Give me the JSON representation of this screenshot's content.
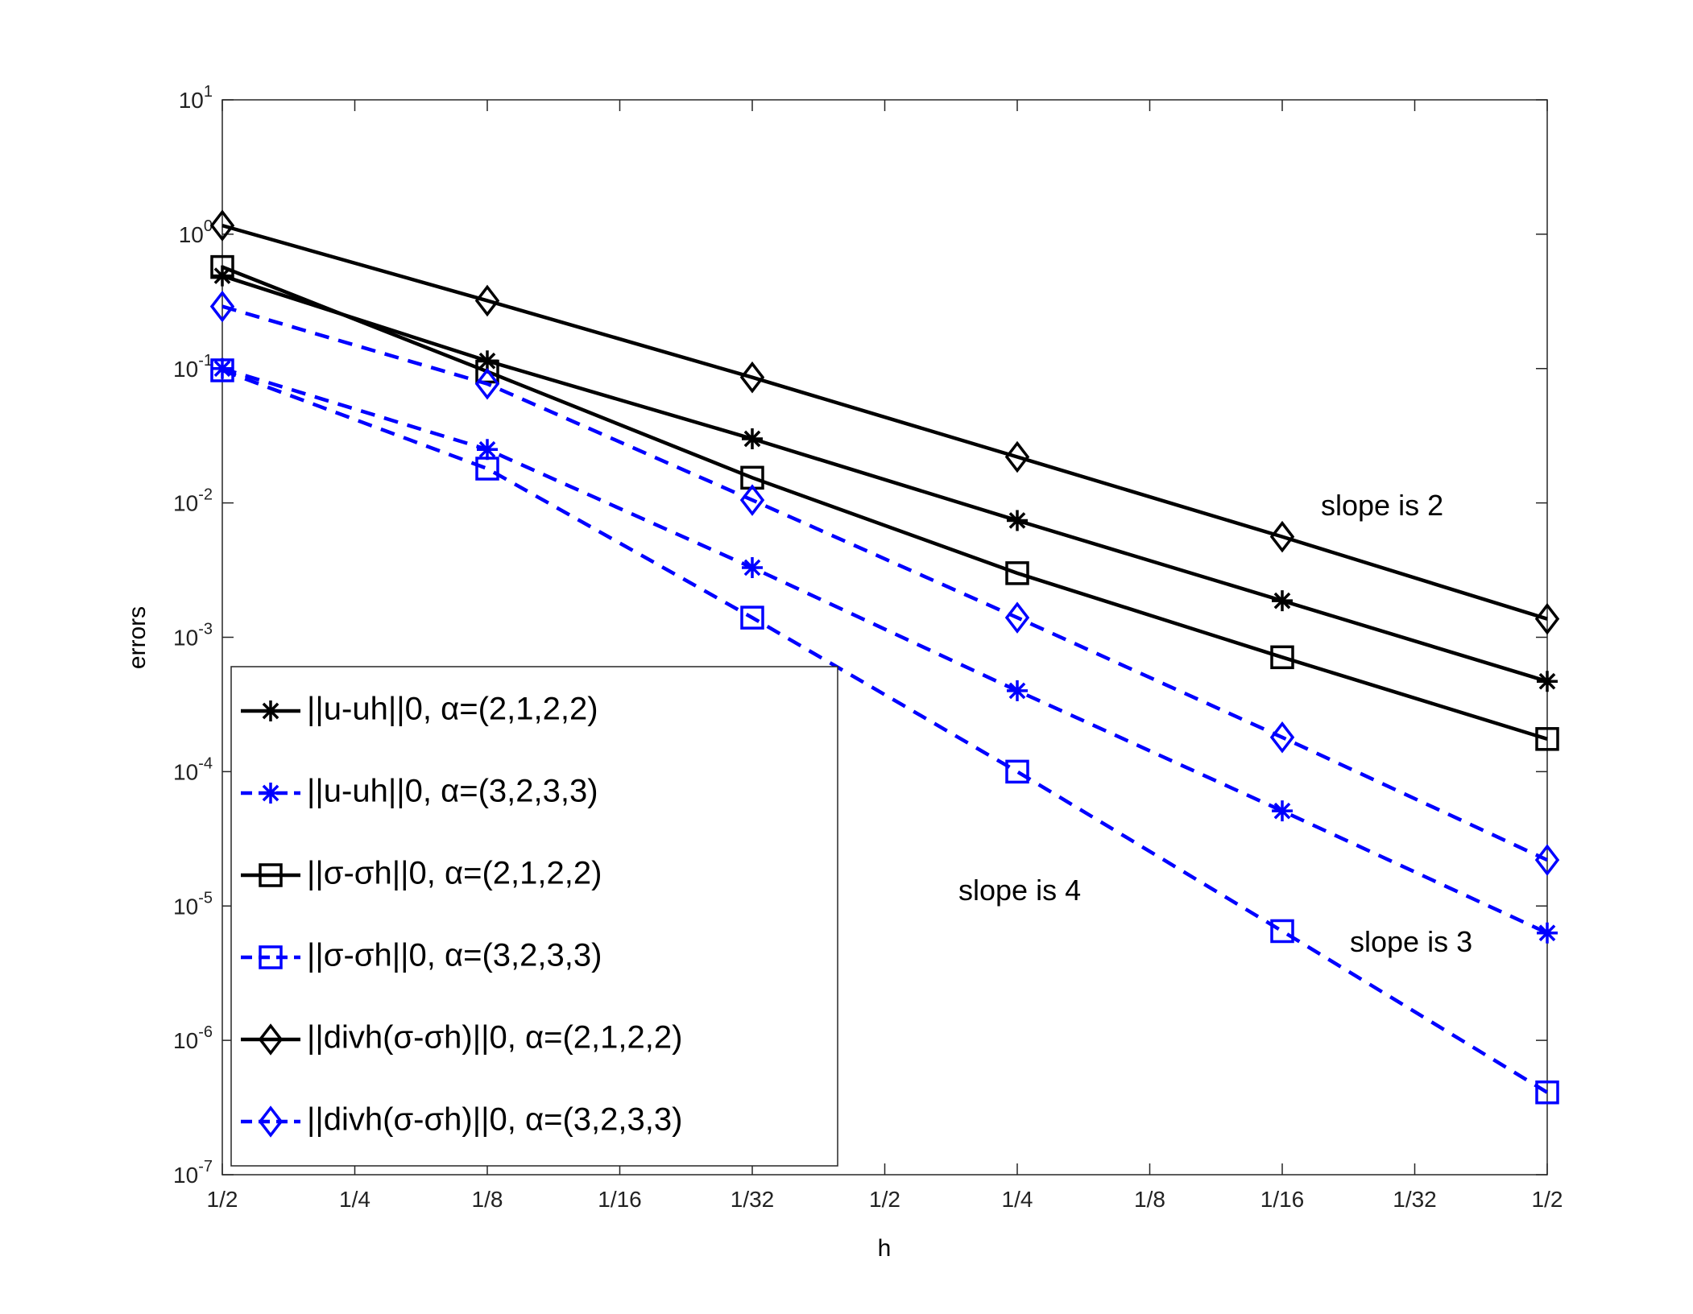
{
  "chart_data": {
    "type": "line",
    "xlabel": "h",
    "ylabel": "errors",
    "log_y": true,
    "xlim": [
      0,
      10
    ],
    "xticks": [
      {
        "value": 0,
        "label": "1/2"
      },
      {
        "value": 1,
        "label": "1/4"
      },
      {
        "value": 2,
        "label": "1/8"
      },
      {
        "value": 3,
        "label": "1/16"
      },
      {
        "value": 4,
        "label": "1/32"
      },
      {
        "value": 5,
        "label": "1/2"
      },
      {
        "value": 6,
        "label": "1/4"
      },
      {
        "value": 7,
        "label": "1/8"
      },
      {
        "value": 8,
        "label": "1/16"
      },
      {
        "value": 9,
        "label": "1/32"
      },
      {
        "value": 10,
        "label": "1/2"
      }
    ],
    "ylim": [
      1e-07,
      10
    ],
    "yticks": [
      {
        "value": 1e-07,
        "label": "10",
        "exponent": "-7"
      },
      {
        "value": 1e-06,
        "label": "10",
        "exponent": "-6"
      },
      {
        "value": 1e-05,
        "label": "10",
        "exponent": "-5"
      },
      {
        "value": 0.0001,
        "label": "10",
        "exponent": "-4"
      },
      {
        "value": 0.001,
        "label": "10",
        "exponent": "-3"
      },
      {
        "value": 0.01,
        "label": "10",
        "exponent": "-2"
      },
      {
        "value": 0.1,
        "label": "10",
        "exponent": "-1"
      },
      {
        "value": 1,
        "label": "10",
        "exponent": "0"
      },
      {
        "value": 10,
        "label": "10",
        "exponent": "1"
      }
    ],
    "x": [
      0,
      2,
      4,
      6,
      8,
      10
    ],
    "legend_position": "lower left",
    "series": [
      {
        "name": "||u-uh||0, α=(2,1,2,2)",
        "color": "#000000",
        "line_style": "solid",
        "marker": "star",
        "values": [
          0.49,
          0.114,
          0.03,
          0.0074,
          0.00187,
          0.00047
        ]
      },
      {
        "name": "||u-uh||0,  α=(3,2,3,3)",
        "color": "#0000ff",
        "line_style": "dashed",
        "marker": "star",
        "values": [
          0.1,
          0.025,
          0.0033,
          0.0004,
          5.1e-05,
          6.3e-06
        ]
      },
      {
        "name": "||σ-σh||0, α=(2,1,2,2)",
        "color": "#000000",
        "line_style": "solid",
        "marker": "square",
        "values": [
          0.57,
          0.095,
          0.0154,
          0.003,
          0.00071,
          0.000175
        ]
      },
      {
        "name": "||σ-σh||0, α=(3,2,3,3)",
        "color": "#0000ff",
        "line_style": "dashed",
        "marker": "square",
        "values": [
          0.097,
          0.018,
          0.0014,
          0.0001,
          6.5e-06,
          4.1e-07
        ]
      },
      {
        "name": "||divh(σ-σh)||0, α=(2,1,2,2)",
        "color": "#000000",
        "line_style": "solid",
        "marker": "diamond",
        "values": [
          1.16,
          0.32,
          0.086,
          0.022,
          0.0056,
          0.00137
        ]
      },
      {
        "name": "||divh(σ-σh)||0, α=(3,2,3,3)",
        "color": "#0000ff",
        "line_style": "dashed",
        "marker": "diamond",
        "values": [
          0.29,
          0.077,
          0.0105,
          0.0014,
          0.00018,
          2.2e-05
        ]
      }
    ],
    "annotations": [
      "slope is 2",
      "slope is 4",
      "slope is 3"
    ]
  }
}
